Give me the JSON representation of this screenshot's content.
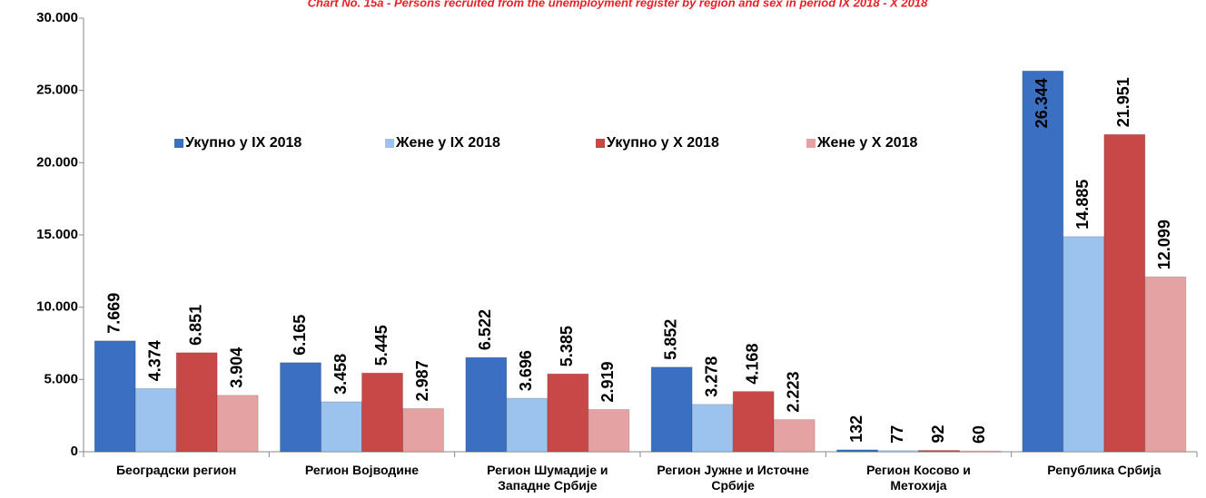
{
  "chart_data": {
    "type": "bar",
    "title": "Chart No. 15a -  Persons recruited from the unemployment register by region and sex in period IX 2018 - X 2018",
    "categories": [
      "Београдски регион",
      "Регион Војводине",
      "Регион Шумадије и Западне Србије",
      "Регион Јужне и Источне Србије",
      "Регион Косово и Метохија",
      "Република Србија"
    ],
    "series": [
      {
        "name": "Укупно у IX 2018",
        "color": "#3b6fc2",
        "values": [
          7669,
          6165,
          6522,
          5852,
          132,
          26344
        ],
        "value_labels": [
          "7.669",
          "6.165",
          "6.522",
          "5.852",
          "132",
          "26.344"
        ]
      },
      {
        "name": "Жене у IX 2018",
        "color": "#9cc2ee",
        "values": [
          4374,
          3458,
          3696,
          3278,
          77,
          14885
        ],
        "value_labels": [
          "4.374",
          "3.458",
          "3.696",
          "3.278",
          "77",
          "14.885"
        ]
      },
      {
        "name": "Укупно у X 2018",
        "color": "#c84848",
        "values": [
          6851,
          5445,
          5385,
          4168,
          92,
          21951
        ],
        "value_labels": [
          "6.851",
          "5.445",
          "5.385",
          "4.168",
          "92",
          "21.951"
        ]
      },
      {
        "name": "Жене у X 2018",
        "color": "#e5a2a2",
        "values": [
          3904,
          2987,
          2919,
          2223,
          60,
          12099
        ],
        "value_labels": [
          "3.904",
          "2.987",
          "2.919",
          "2.223",
          "60",
          "12.099"
        ]
      }
    ],
    "ylim": [
      0,
      30000
    ],
    "yticks": [
      0,
      {
        "value": 5000,
        "label": "5.000"
      },
      {
        "value": 10000,
        "label": "10.000"
      },
      {
        "value": 15000,
        "label": "15.000"
      },
      {
        "value": 20000,
        "label": "20.000"
      },
      {
        "value": 25000,
        "label": "25.000"
      },
      {
        "value": 30000,
        "label": "30.000"
      }
    ],
    "legend": "top",
    "grid": false
  }
}
